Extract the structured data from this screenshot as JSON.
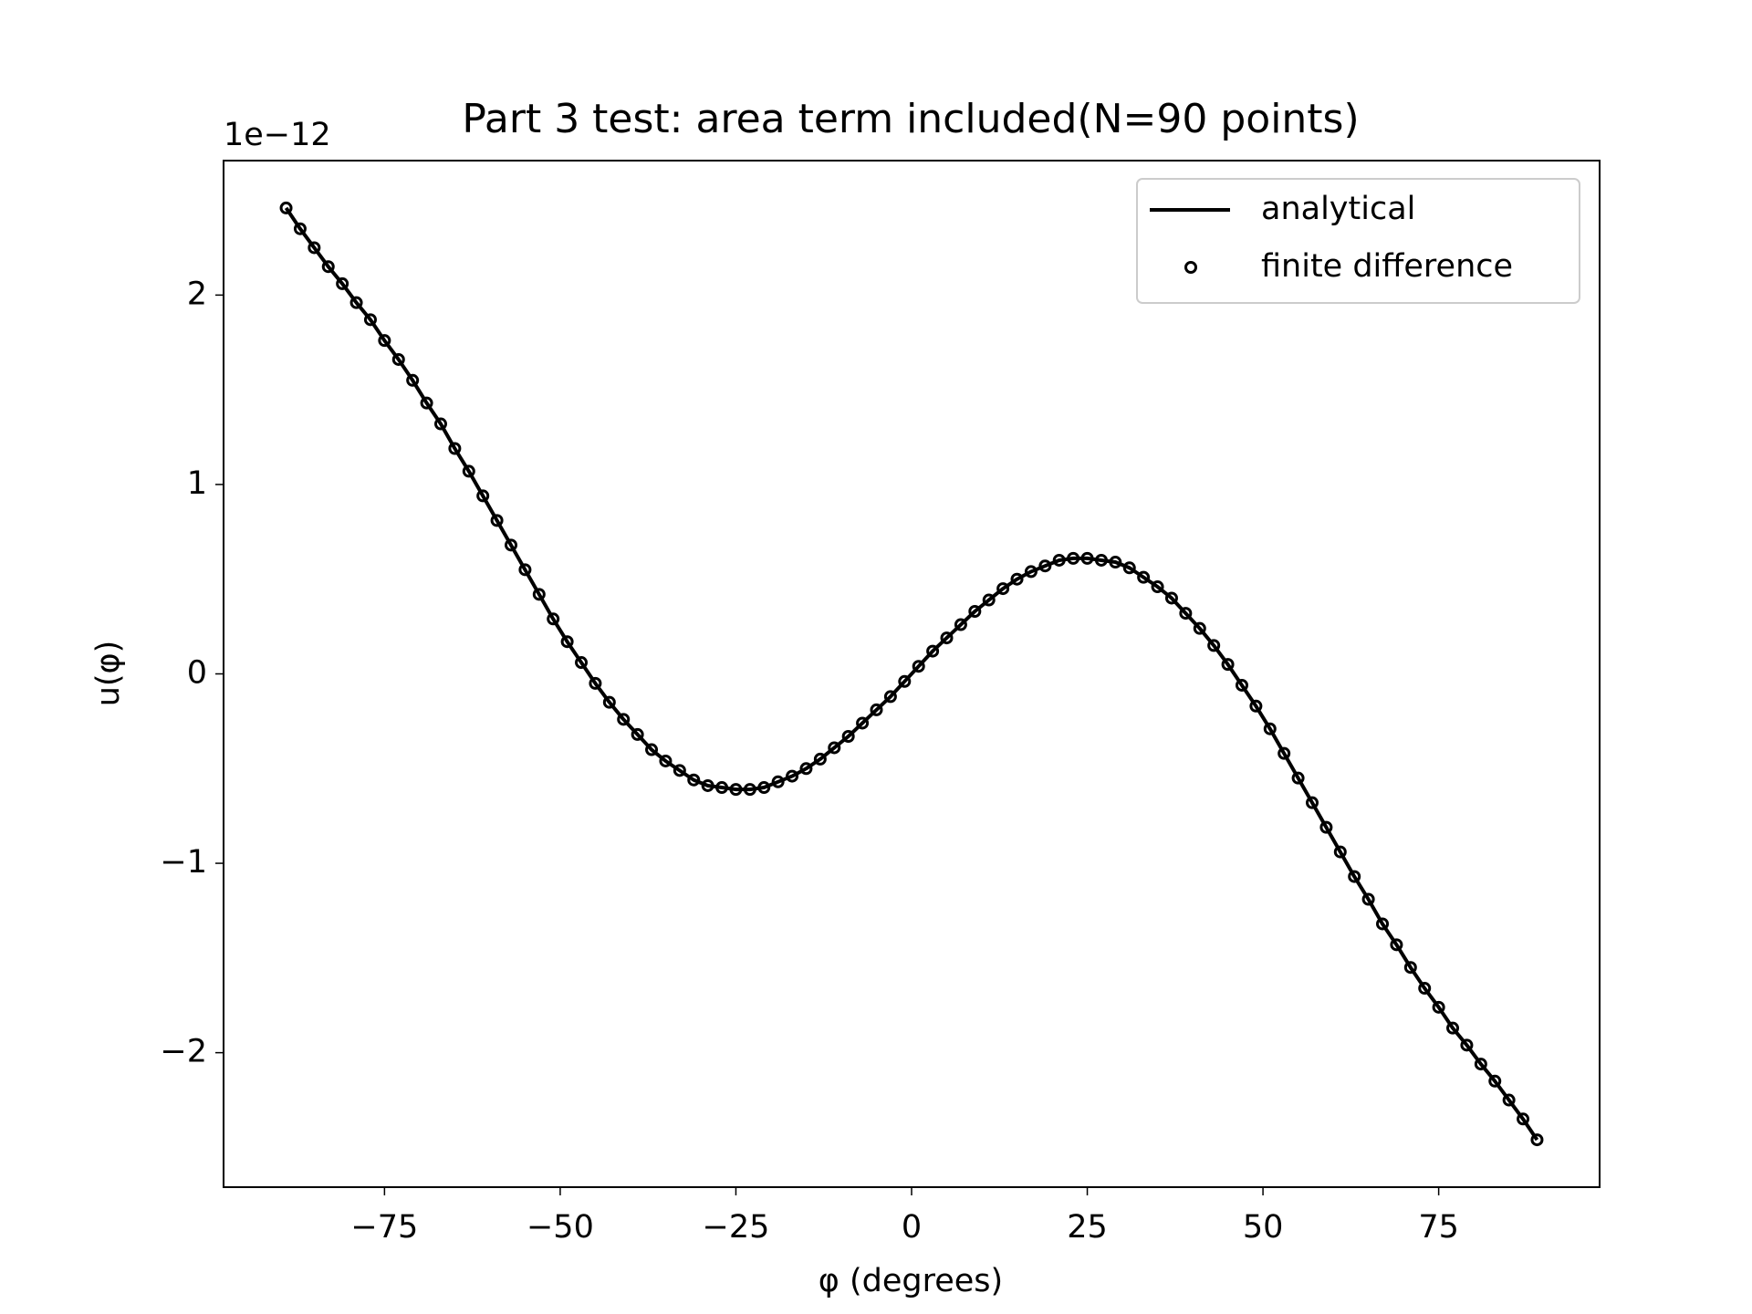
{
  "chart_data": {
    "type": "line",
    "title": "Part 3 test: area term included(N=90 points)",
    "x_label": "φ (degrees)",
    "y_label": "u(φ)",
    "y_offset_label": "1e−12",
    "x": [
      -89,
      -87,
      -85,
      -83,
      -81,
      -79,
      -77,
      -75,
      -73,
      -71,
      -69,
      -67,
      -65,
      -63,
      -61,
      -59,
      -57,
      -55,
      -53,
      -51,
      -49,
      -47,
      -45,
      -43,
      -41,
      -39,
      -37,
      -35,
      -33,
      -31,
      -29,
      -27,
      -25,
      -23,
      -21,
      -19,
      -17,
      -15,
      -13,
      -11,
      -9,
      -7,
      -5,
      -3,
      -1,
      1,
      3,
      5,
      7,
      9,
      11,
      13,
      15,
      17,
      19,
      21,
      23,
      25,
      27,
      29,
      31,
      33,
      35,
      37,
      39,
      41,
      43,
      45,
      47,
      49,
      51,
      53,
      55,
      57,
      59,
      61,
      63,
      65,
      67,
      69,
      71,
      73,
      75,
      77,
      79,
      81,
      83,
      85,
      87,
      89
    ],
    "series": [
      {
        "name": "analytical",
        "style": "line",
        "color": "#000000",
        "values": [
          2.46,
          2.35,
          2.25,
          2.15,
          2.06,
          1.96,
          1.87,
          1.76,
          1.66,
          1.55,
          1.43,
          1.32,
          1.19,
          1.07,
          0.94,
          0.81,
          0.68,
          0.55,
          0.42,
          0.29,
          0.17,
          0.06,
          -0.05,
          -0.15,
          -0.24,
          -0.32,
          -0.4,
          -0.46,
          -0.51,
          -0.56,
          -0.59,
          -0.6,
          -0.61,
          -0.61,
          -0.6,
          -0.57,
          -0.54,
          -0.5,
          -0.45,
          -0.39,
          -0.33,
          -0.26,
          -0.19,
          -0.12,
          -0.04,
          0.04,
          0.12,
          0.19,
          0.26,
          0.33,
          0.39,
          0.45,
          0.5,
          0.54,
          0.57,
          0.6,
          0.61,
          0.61,
          0.6,
          0.59,
          0.56,
          0.51,
          0.46,
          0.4,
          0.32,
          0.24,
          0.15,
          0.05,
          -0.06,
          -0.17,
          -0.29,
          -0.42,
          -0.55,
          -0.68,
          -0.81,
          -0.94,
          -1.07,
          -1.19,
          -1.32,
          -1.43,
          -1.55,
          -1.66,
          -1.76,
          -1.87,
          -1.96,
          -2.06,
          -2.15,
          -2.25,
          -2.35,
          -2.46
        ]
      },
      {
        "name": "finite difference",
        "style": "markers",
        "color": "#000000",
        "values": [
          2.46,
          2.35,
          2.25,
          2.15,
          2.06,
          1.96,
          1.87,
          1.76,
          1.66,
          1.55,
          1.43,
          1.32,
          1.19,
          1.07,
          0.94,
          0.81,
          0.68,
          0.55,
          0.42,
          0.29,
          0.17,
          0.06,
          -0.05,
          -0.15,
          -0.24,
          -0.32,
          -0.4,
          -0.46,
          -0.51,
          -0.56,
          -0.59,
          -0.6,
          -0.61,
          -0.61,
          -0.6,
          -0.57,
          -0.54,
          -0.5,
          -0.45,
          -0.39,
          -0.33,
          -0.26,
          -0.19,
          -0.12,
          -0.04,
          0.04,
          0.12,
          0.19,
          0.26,
          0.33,
          0.39,
          0.45,
          0.5,
          0.54,
          0.57,
          0.6,
          0.61,
          0.61,
          0.6,
          0.59,
          0.56,
          0.51,
          0.46,
          0.4,
          0.32,
          0.24,
          0.15,
          0.05,
          -0.06,
          -0.17,
          -0.29,
          -0.42,
          -0.55,
          -0.68,
          -0.81,
          -0.94,
          -1.07,
          -1.19,
          -1.32,
          -1.43,
          -1.55,
          -1.66,
          -1.76,
          -1.87,
          -1.96,
          -2.06,
          -2.15,
          -2.25,
          -2.35,
          -2.46
        ]
      }
    ],
    "xlim": [
      -97.9,
      97.9
    ],
    "ylim": [
      -2.71,
      2.71
    ],
    "xticks": [
      {
        "value": -75,
        "label": "−75"
      },
      {
        "value": -50,
        "label": "−50"
      },
      {
        "value": -25,
        "label": "−25"
      },
      0,
      25,
      50,
      75
    ],
    "yticks": [
      {
        "value": -2,
        "label": "−2"
      },
      {
        "value": -1,
        "label": "−1"
      },
      0,
      1,
      2
    ],
    "grid": false,
    "legend": "upper right"
  }
}
